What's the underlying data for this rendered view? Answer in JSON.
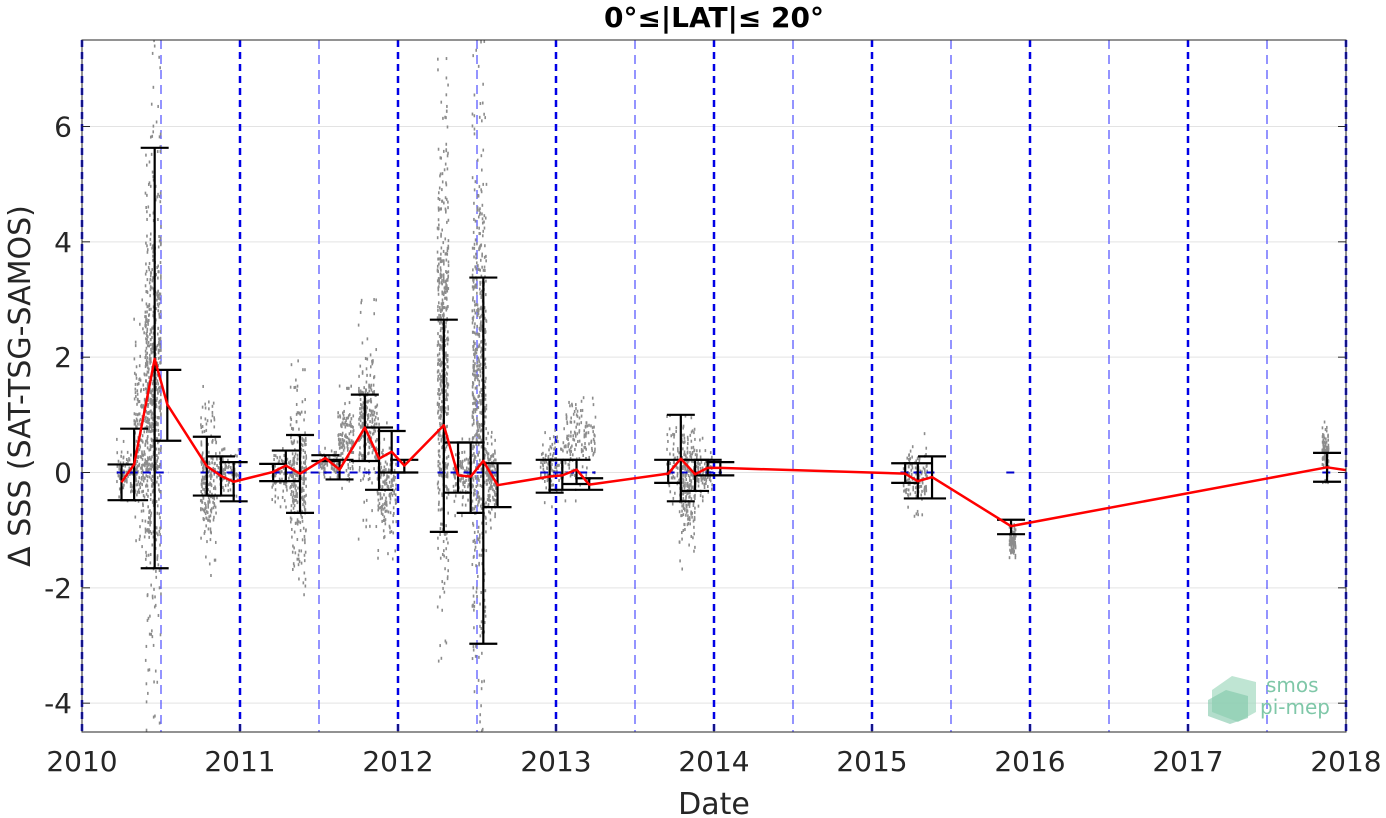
{
  "chart_data": {
    "type": "scatter",
    "title": "0°≤|LAT|≤ 20°",
    "xlabel": "Date",
    "ylabel": "Δ SSS (SAT-TSG-SAMOS)",
    "xlim": [
      2010.0,
      2018.0
    ],
    "ylim": [
      -4.5,
      7.5
    ],
    "xticks": [
      2010,
      2011,
      2012,
      2013,
      2014,
      2015,
      2016,
      2017,
      2018
    ],
    "xtick_labels": [
      "2010",
      "2011",
      "2012",
      "2013",
      "2014",
      "2015",
      "2016",
      "2017",
      "2018"
    ],
    "yticks": [
      -4,
      -2,
      0,
      2,
      4,
      6
    ],
    "ytick_labels": [
      "-4",
      "-2",
      "0",
      "2",
      "4",
      "6"
    ],
    "grid": true,
    "year_lines": [
      2010,
      2011,
      2012,
      2013,
      2014,
      2015,
      2016,
      2017,
      2018
    ],
    "halfyear_lines": [
      2010.5,
      2011.5,
      2012.5,
      2013.5,
      2014.5,
      2015.5,
      2016.5,
      2017.5
    ],
    "scatter_clusters": [
      {
        "x": [
          2010.22,
          2010.4
        ],
        "ymin": -0.6,
        "ymax": 0.6
      },
      {
        "x": [
          2010.33,
          2010.46
        ],
        "ymin": -1.6,
        "ymax": 3.0
      },
      {
        "x": [
          2010.4,
          2010.5
        ],
        "ymin": -4.5,
        "ymax": 7.5
      },
      {
        "x": [
          2010.75,
          2010.85
        ],
        "ymin": -1.8,
        "ymax": 1.5
      },
      {
        "x": [
          2010.85,
          2011.0
        ],
        "ymin": -0.5,
        "ymax": 0.5
      },
      {
        "x": [
          2011.2,
          2011.35
        ],
        "ymin": -0.6,
        "ymax": 0.6
      },
      {
        "x": [
          2011.32,
          2011.42
        ],
        "ymin": -2.2,
        "ymax": 2.0
      },
      {
        "x": [
          2011.5,
          2011.62
        ],
        "ymin": -0.2,
        "ymax": 0.5
      },
      {
        "x": [
          2011.62,
          2011.72
        ],
        "ymin": -0.3,
        "ymax": 1.5
      },
      {
        "x": [
          2011.75,
          2011.87
        ],
        "ymin": -1.2,
        "ymax": 3.0
      },
      {
        "x": [
          2011.87,
          2011.99
        ],
        "ymin": -1.5,
        "ymax": 1.0
      },
      {
        "x": [
          2012.25,
          2012.32
        ],
        "ymin": -3.3,
        "ymax": 7.2
      },
      {
        "x": [
          2012.35,
          2012.47
        ],
        "ymin": -0.8,
        "ymax": 0.6
      },
      {
        "x": [
          2012.47,
          2012.56
        ],
        "ymin": -4.5,
        "ymax": 7.5
      },
      {
        "x": [
          2012.56,
          2012.62
        ],
        "ymin": -1.0,
        "ymax": 0.8
      },
      {
        "x": [
          2012.9,
          2013.05
        ],
        "ymin": -0.6,
        "ymax": 0.8
      },
      {
        "x": [
          2013.05,
          2013.25
        ],
        "ymin": -0.5,
        "ymax": 1.6
      },
      {
        "x": [
          2013.7,
          2013.88
        ],
        "ymin": -0.8,
        "ymax": 1.0
      },
      {
        "x": [
          2013.78,
          2013.88
        ],
        "ymin": -1.7,
        "ymax": 1.0
      },
      {
        "x": [
          2013.88,
          2013.99
        ],
        "ymin": -0.6,
        "ymax": 0.6
      },
      {
        "x": [
          2015.2,
          2015.35
        ],
        "ymin": -0.8,
        "ymax": 0.7
      },
      {
        "x": [
          2015.87,
          2015.91
        ],
        "ymin": -1.5,
        "ymax": -0.8
      },
      {
        "x": [
          2017.85,
          2017.89
        ],
        "ymin": -0.2,
        "ymax": 0.95
      }
    ],
    "errorbars": [
      {
        "x": 2010.25,
        "low": -0.48,
        "high": 0.14
      },
      {
        "x": 2010.33,
        "low": -0.48,
        "high": 0.76
      },
      {
        "x": 2010.46,
        "low": -1.66,
        "high": 5.63
      },
      {
        "x": 2010.54,
        "low": 0.55,
        "high": 1.78
      },
      {
        "x": 2010.79,
        "low": -0.4,
        "high": 0.62
      },
      {
        "x": 2010.88,
        "low": -0.4,
        "high": 0.28
      },
      {
        "x": 2010.96,
        "low": -0.5,
        "high": 0.18
      },
      {
        "x": 2011.21,
        "low": -0.15,
        "high": 0.15
      },
      {
        "x": 2011.29,
        "low": -0.15,
        "high": 0.38
      },
      {
        "x": 2011.38,
        "low": -0.7,
        "high": 0.65
      },
      {
        "x": 2011.54,
        "low": 0.2,
        "high": 0.3
      },
      {
        "x": 2011.63,
        "low": -0.12,
        "high": 0.22
      },
      {
        "x": 2011.79,
        "low": 0.2,
        "high": 1.35
      },
      {
        "x": 2011.88,
        "low": -0.3,
        "high": 0.78
      },
      {
        "x": 2011.96,
        "low": 0.0,
        "high": 0.72
      },
      {
        "x": 2012.04,
        "low": 0.0,
        "high": 0.22
      },
      {
        "x": 2012.29,
        "low": -1.03,
        "high": 2.65
      },
      {
        "x": 2012.38,
        "low": -0.35,
        "high": 0.52
      },
      {
        "x": 2012.46,
        "low": -0.7,
        "high": 0.52
      },
      {
        "x": 2012.54,
        "low": -2.97,
        "high": 3.38
      },
      {
        "x": 2012.63,
        "low": -0.6,
        "high": 0.16
      },
      {
        "x": 2012.96,
        "low": -0.35,
        "high": 0.22
      },
      {
        "x": 2013.04,
        "low": -0.3,
        "high": 0.22
      },
      {
        "x": 2013.13,
        "low": -0.2,
        "high": 0.22
      },
      {
        "x": 2013.21,
        "low": -0.3,
        "high": -0.1
      },
      {
        "x": 2013.71,
        "low": -0.18,
        "high": 0.22
      },
      {
        "x": 2013.79,
        "low": -0.5,
        "high": 1.0
      },
      {
        "x": 2013.88,
        "low": -0.32,
        "high": 0.22
      },
      {
        "x": 2013.96,
        "low": -0.05,
        "high": 0.22
      },
      {
        "x": 2014.04,
        "low": -0.05,
        "high": 0.18
      },
      {
        "x": 2015.21,
        "low": -0.18,
        "high": 0.16
      },
      {
        "x": 2015.29,
        "low": -0.45,
        "high": 0.16
      },
      {
        "x": 2015.38,
        "low": -0.45,
        "high": 0.28
      },
      {
        "x": 2015.88,
        "low": -1.07,
        "high": -0.82
      },
      {
        "x": 2017.88,
        "low": -0.16,
        "high": 0.34
      }
    ],
    "mean_line": {
      "x": [
        2010.25,
        2010.33,
        2010.46,
        2010.54,
        2010.79,
        2010.88,
        2010.96,
        2011.21,
        2011.29,
        2011.38,
        2011.54,
        2011.63,
        2011.79,
        2011.88,
        2011.96,
        2012.04,
        2012.29,
        2012.38,
        2012.46,
        2012.54,
        2012.63,
        2012.96,
        2013.04,
        2013.13,
        2013.21,
        2013.71,
        2013.79,
        2013.88,
        2013.96,
        2014.04,
        2015.21,
        2015.29,
        2015.38,
        2015.88,
        2017.88,
        2018.0
      ],
      "y": [
        -0.17,
        0.14,
        1.97,
        1.18,
        0.11,
        -0.06,
        -0.16,
        0.01,
        0.12,
        -0.02,
        0.25,
        0.05,
        0.78,
        0.24,
        0.36,
        0.12,
        0.82,
        -0.05,
        -0.07,
        0.2,
        -0.22,
        -0.07,
        -0.05,
        0.05,
        -0.21,
        -0.02,
        0.24,
        -0.03,
        0.08,
        0.08,
        -0.02,
        -0.15,
        -0.08,
        -0.93,
        0.09,
        0.04
      ]
    },
    "zero_line": {
      "y": 0,
      "segments": [
        [
          2010.22,
          2010.55
        ],
        [
          2010.75,
          2011.0
        ],
        [
          2011.2,
          2012.1
        ],
        [
          2012.25,
          2012.65
        ],
        [
          2012.9,
          2013.25
        ],
        [
          2013.7,
          2014.05
        ],
        [
          2015.18,
          2015.4
        ],
        [
          2015.85,
          2015.92
        ],
        [
          2017.85,
          2017.92
        ]
      ]
    },
    "colors": {
      "scatter": "#8c8c8c",
      "mean": "#ff0000",
      "errorbar": "#000000",
      "year_line": "#0000e6",
      "halfyear_line": "#4d4dff",
      "grid": "#e3e3e3",
      "zero_line": "#0000cc"
    }
  },
  "logo": {
    "line1": "smos",
    "line2": "pi-mep"
  }
}
